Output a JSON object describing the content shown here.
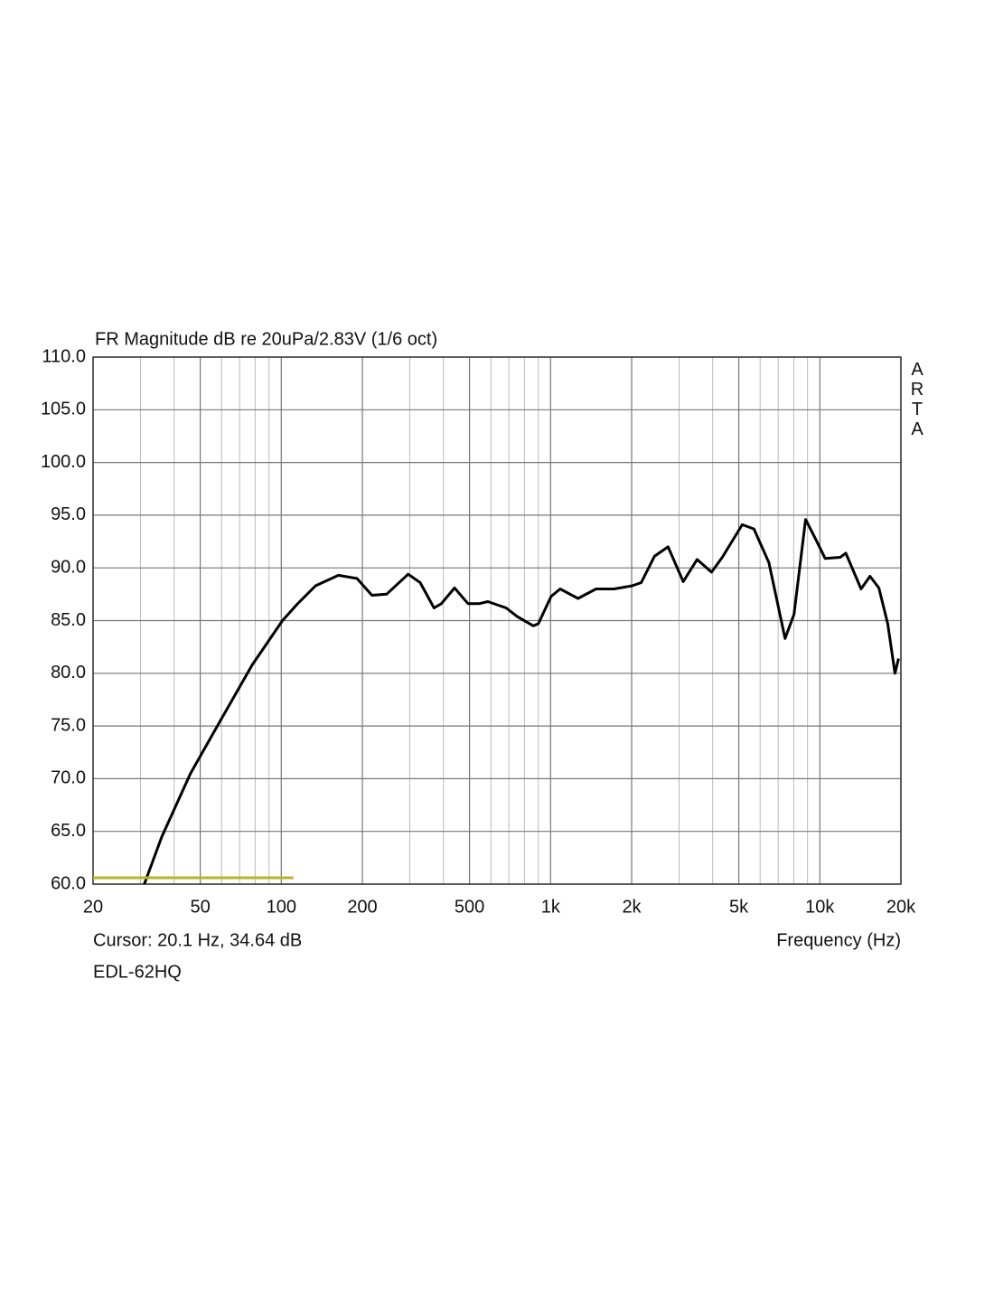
{
  "chart_data": {
    "type": "line",
    "title": "FR Magnitude dB re 20uPa/2.83V (1/6 oct)",
    "watermark": "ARTA",
    "cursor_text": "Cursor: 20.1 Hz, 34.64 dB",
    "x_label": "Frequency (Hz)",
    "device": "EDL-62HQ",
    "log_x": true,
    "grid": true,
    "xlim": [
      20,
      20000
    ],
    "ylim": [
      60,
      110
    ],
    "xticks": [
      20,
      50,
      100,
      200,
      500,
      {
        "value": 1000,
        "label": "1k"
      },
      {
        "value": 2000,
        "label": "2k"
      },
      {
        "value": 5000,
        "label": "5k"
      },
      {
        "value": 10000,
        "label": "10k"
      },
      {
        "value": 20000,
        "label": "20k"
      }
    ],
    "xgrid": [
      30,
      40,
      60,
      70,
      80,
      90,
      300,
      400,
      600,
      700,
      800,
      900,
      3000,
      4000,
      6000,
      7000,
      8000,
      9000
    ],
    "yticks": [
      {
        "value": 60,
        "label": "60.0"
      },
      {
        "value": 65,
        "label": "65.0"
      },
      {
        "value": 70,
        "label": "70.0"
      },
      {
        "value": 75,
        "label": "75.0"
      },
      {
        "value": 80,
        "label": "80.0"
      },
      {
        "value": 85,
        "label": "85.0"
      },
      {
        "value": 90,
        "label": "90.0"
      },
      {
        "value": 95,
        "label": "95.0"
      },
      {
        "value": 100,
        "label": "100.0"
      },
      {
        "value": 105,
        "label": "105.0"
      },
      {
        "value": 110,
        "label": "110.0"
      }
    ],
    "series": [
      {
        "color": "#000000",
        "x": [
          31,
          36,
          46,
          60,
          78,
          101,
          115,
          134,
          163,
          191,
          217,
          246,
          296,
          328,
          369,
          393,
          440,
          494,
          542,
          585,
          684,
          750,
          862,
          900,
          1005,
          1085,
          1265,
          1475,
          1720,
          2010,
          2170,
          2430,
          2730,
          3110,
          3500,
          3960,
          4340,
          5150,
          5690,
          6470,
          7430,
          8020,
          8850,
          9700,
          10460,
          11900,
          12480,
          14220,
          15350,
          16560,
          17870,
          19000,
          19600
        ],
        "values": [
          60.0,
          64.5,
          70.5,
          75.7,
          80.8,
          85.0,
          86.6,
          88.3,
          89.3,
          89.0,
          87.4,
          87.5,
          89.4,
          88.6,
          86.2,
          86.6,
          88.1,
          86.6,
          86.6,
          86.8,
          86.2,
          85.4,
          84.5,
          84.7,
          87.3,
          88.0,
          87.1,
          88.0,
          88.0,
          88.3,
          88.6,
          91.1,
          92.0,
          88.7,
          90.8,
          89.6,
          91.0,
          94.1,
          93.7,
          90.5,
          83.3,
          85.6,
          94.6,
          92.6,
          90.9,
          91.0,
          91.4,
          88.0,
          89.2,
          88.1,
          84.7,
          80.0,
          81.4
        ]
      },
      {
        "color": "#b5b52a",
        "x": [
          20,
          111
        ],
        "values": [
          60.6,
          60.6
        ]
      }
    ]
  }
}
